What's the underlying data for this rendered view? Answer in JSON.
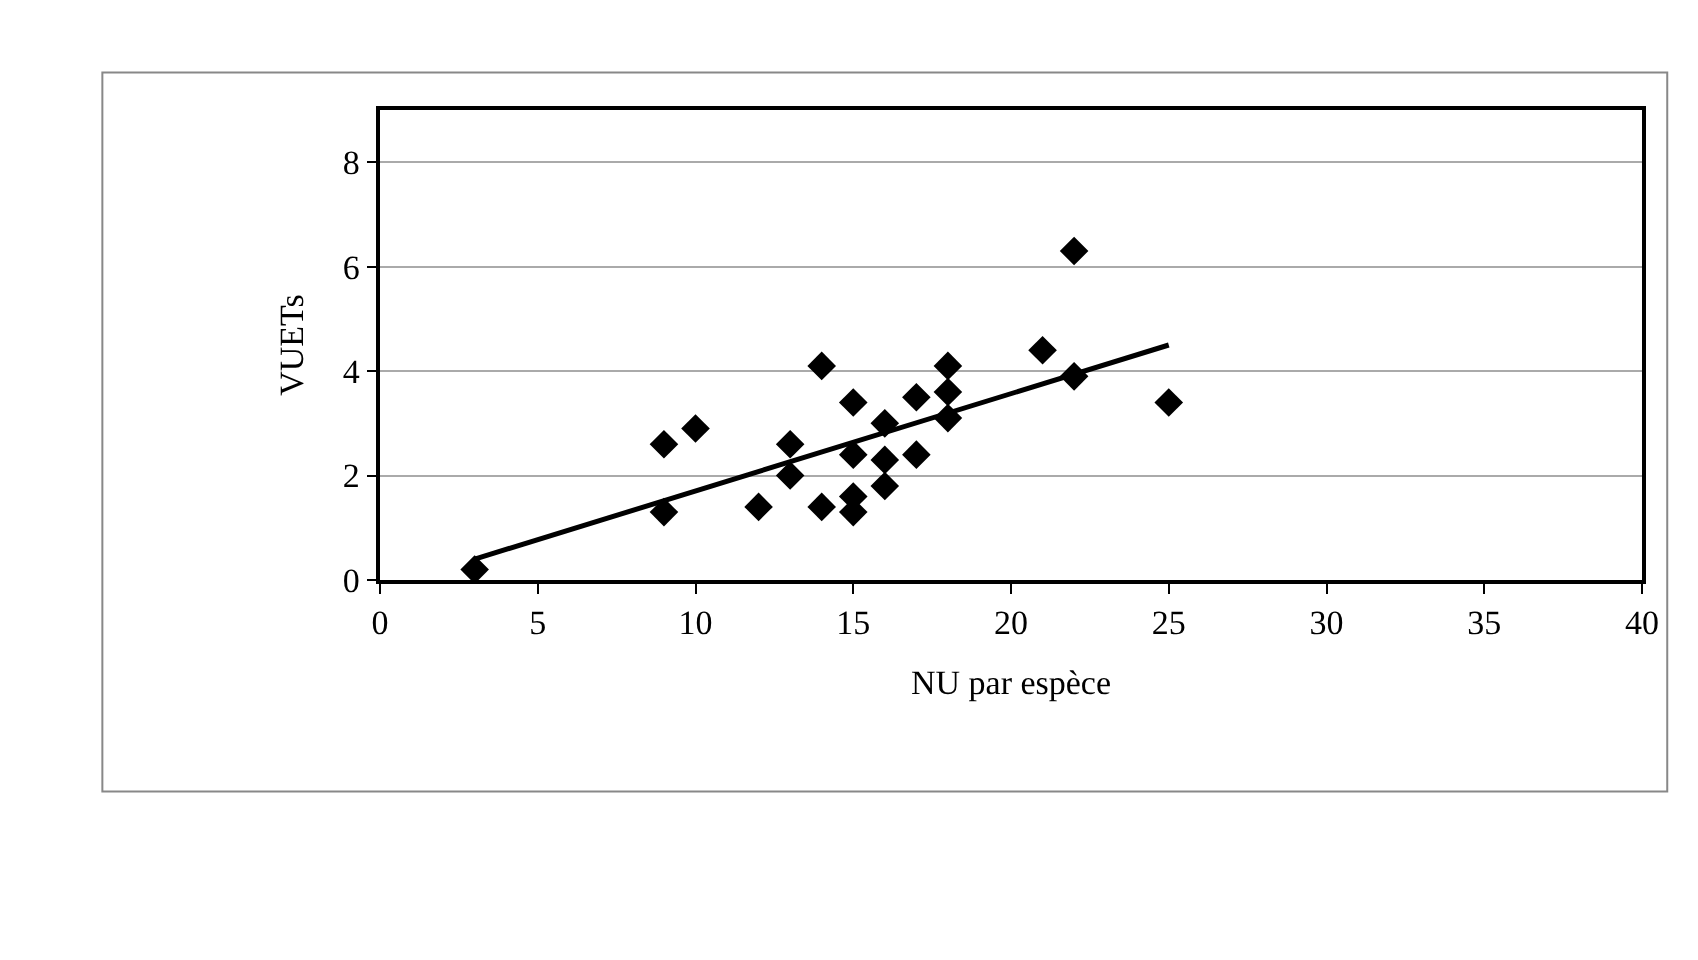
{
  "chart_data": {
    "type": "scatter",
    "xlabel": "NU par espèce",
    "ylabel": "VUETs",
    "xlim": [
      0,
      40
    ],
    "xticks": [
      0,
      5,
      10,
      15,
      20,
      25,
      30,
      35,
      40
    ],
    "ylim": [
      0,
      9
    ],
    "yticks": [
      0,
      2,
      4,
      6,
      8
    ],
    "grid": "y",
    "marker": "diamond",
    "series": [
      {
        "color": "#000000",
        "x": [
          3,
          9,
          9,
          10,
          12,
          13,
          13,
          14,
          14,
          15,
          15,
          15,
          15,
          16,
          16,
          16,
          17,
          17,
          18,
          18,
          18,
          21,
          22,
          22,
          25
        ],
        "values": [
          0.2,
          1.3,
          2.6,
          2.9,
          1.4,
          2.6,
          2.0,
          4.1,
          1.4,
          3.4,
          2.4,
          1.6,
          1.3,
          3.0,
          2.3,
          1.8,
          3.5,
          2.4,
          4.1,
          3.6,
          3.1,
          4.4,
          6.3,
          3.9,
          3.4
        ]
      },
      {
        "type": "line",
        "color": "#000000",
        "marker": "none",
        "x": [
          3,
          25
        ],
        "values": [
          0.4,
          4.5
        ]
      }
    ]
  }
}
